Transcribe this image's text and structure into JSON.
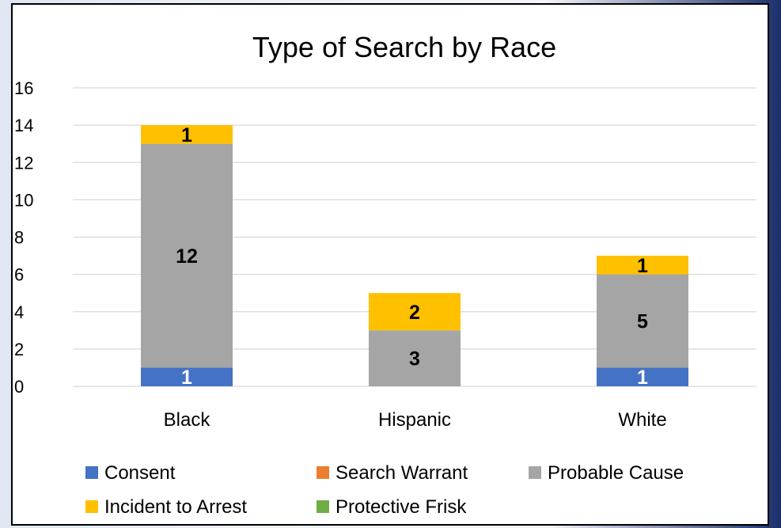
{
  "chart_data": {
    "type": "bar",
    "stacked": true,
    "title": "Type of Search by Race",
    "xlabel": "",
    "ylabel": "",
    "categories": [
      "Black",
      "Hispanic",
      "White"
    ],
    "ylim": [
      0,
      16
    ],
    "yticks": [
      "0",
      "2",
      "4",
      "6",
      "8",
      "10",
      "12",
      "14",
      "16"
    ],
    "grid": true,
    "legend_position": "bottom",
    "series": [
      {
        "name": "Consent",
        "color": "#4472C4",
        "values": [
          1,
          0,
          1
        ],
        "labels": [
          "1",
          "",
          "1"
        ],
        "label_color": "#ffffff"
      },
      {
        "name": "Search Warrant",
        "color": "#ED7D31",
        "values": [
          0,
          0,
          0
        ],
        "labels": [
          "",
          "",
          ""
        ],
        "label_color": "#000000"
      },
      {
        "name": "Probable Cause",
        "color": "#A5A5A5",
        "values": [
          12,
          3,
          5
        ],
        "labels": [
          "12",
          "3",
          "5"
        ],
        "label_color": "#000000"
      },
      {
        "name": "Incident to Arrest",
        "color": "#FFC000",
        "values": [
          1,
          2,
          1
        ],
        "labels": [
          "1",
          "2",
          "1"
        ],
        "label_color": "#000000"
      },
      {
        "name": "Protective Frisk",
        "color": "#70AD47",
        "values": [
          0,
          0,
          0
        ],
        "labels": [
          "",
          "",
          ""
        ],
        "label_color": "#000000"
      }
    ]
  }
}
